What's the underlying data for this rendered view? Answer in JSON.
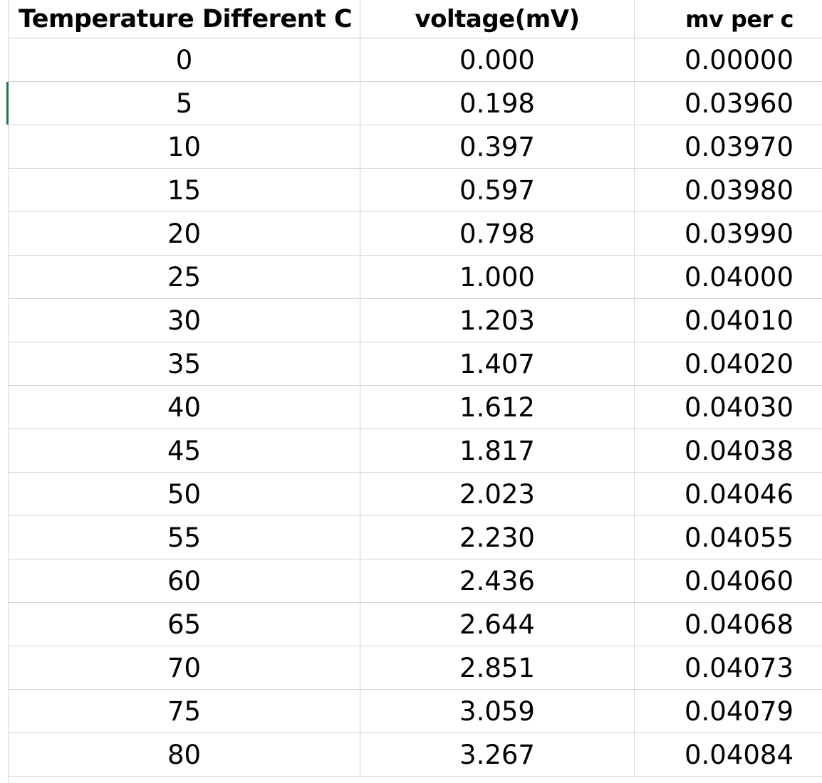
{
  "table": {
    "columns": [
      "Temperature Different C",
      "voltage(mV)",
      "mv per c"
    ],
    "rows": [
      [
        "0",
        "0.000",
        "0.00000"
      ],
      [
        "5",
        "0.198",
        "0.03960"
      ],
      [
        "10",
        "0.397",
        "0.03970"
      ],
      [
        "15",
        "0.597",
        "0.03980"
      ],
      [
        "20",
        "0.798",
        "0.03990"
      ],
      [
        "25",
        "1.000",
        "0.04000"
      ],
      [
        "30",
        "1.203",
        "0.04010"
      ],
      [
        "35",
        "1.407",
        "0.04020"
      ],
      [
        "40",
        "1.612",
        "0.04030"
      ],
      [
        "45",
        "1.817",
        "0.04038"
      ],
      [
        "50",
        "2.023",
        "0.04046"
      ],
      [
        "55",
        "2.230",
        "0.04055"
      ],
      [
        "60",
        "2.436",
        "0.04060"
      ],
      [
        "65",
        "2.644",
        "0.04068"
      ],
      [
        "70",
        "2.851",
        "0.04073"
      ],
      [
        "75",
        "3.059",
        "0.04079"
      ],
      [
        "80",
        "3.267",
        "0.04084"
      ]
    ]
  },
  "colors": {
    "gridline": "#d4d4d4",
    "active_row_marker": "#217346"
  }
}
